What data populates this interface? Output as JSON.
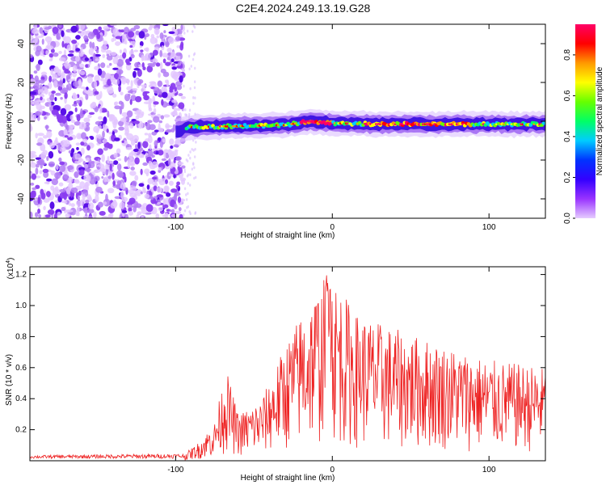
{
  "title": "C2E4.2024.249.13.19.G28",
  "chart_data": [
    {
      "type": "heatmap",
      "xlabel": "Height of straight line (km)",
      "ylabel": "Frequency (Hz)",
      "xlim": [
        -193,
        136
      ],
      "ylim": [
        -50,
        50
      ],
      "x_ticks": [
        -100,
        0,
        100
      ],
      "y_ticks": [
        -40,
        -20,
        0,
        20,
        40
      ],
      "colorbar": {
        "label": "Normalized spectral amplitude",
        "range": [
          0,
          0.95
        ],
        "ticks": [
          0.0,
          0.2,
          0.4,
          0.6,
          0.8
        ],
        "colormap": [
          "#e6ccff",
          "#9933ff",
          "#3300ff",
          "#0033ff",
          "#00ccff",
          "#00ff66",
          "#66ff00",
          "#ffff00",
          "#ff9900",
          "#ff0000",
          "#ff0066"
        ]
      },
      "noise_region_x": [
        -193,
        -95
      ],
      "signal_track": [
        {
          "x": -100,
          "freq": -5
        },
        {
          "x": -90,
          "freq": -3
        },
        {
          "x": -60,
          "freq": -2.5
        },
        {
          "x": -30,
          "freq": -2
        },
        {
          "x": -15,
          "freq": 0
        },
        {
          "x": 0,
          "freq": -1
        },
        {
          "x": 30,
          "freq": -1.5
        },
        {
          "x": 60,
          "freq": -1.5
        },
        {
          "x": 100,
          "freq": -1.5
        },
        {
          "x": 136,
          "freq": -1.5
        }
      ]
    },
    {
      "type": "line",
      "xlabel": "Height of straight line (km)",
      "ylabel": "SNR (10 * v/v)",
      "exponent_label": "(x10",
      "exponent_power": "4",
      "xlim": [
        -193,
        136
      ],
      "ylim": [
        0,
        1.25
      ],
      "x_ticks": [
        -100,
        0,
        100
      ],
      "y_ticks": [
        0.2,
        0.4,
        0.6,
        0.8,
        1.0,
        1.2
      ],
      "color": "#ee2222",
      "envelope": [
        {
          "x": -193,
          "y": 0.03
        },
        {
          "x": -95,
          "y": 0.04
        },
        {
          "x": -85,
          "y": 0.12
        },
        {
          "x": -75,
          "y": 0.25
        },
        {
          "x": -68,
          "y": 0.6
        },
        {
          "x": -60,
          "y": 0.3
        },
        {
          "x": -45,
          "y": 0.4
        },
        {
          "x": -30,
          "y": 0.75
        },
        {
          "x": -20,
          "y": 0.95
        },
        {
          "x": -2,
          "y": 1.23
        },
        {
          "x": 15,
          "y": 0.95
        },
        {
          "x": 40,
          "y": 0.85
        },
        {
          "x": 70,
          "y": 0.75
        },
        {
          "x": 100,
          "y": 0.65
        },
        {
          "x": 136,
          "y": 0.6
        }
      ]
    }
  ]
}
